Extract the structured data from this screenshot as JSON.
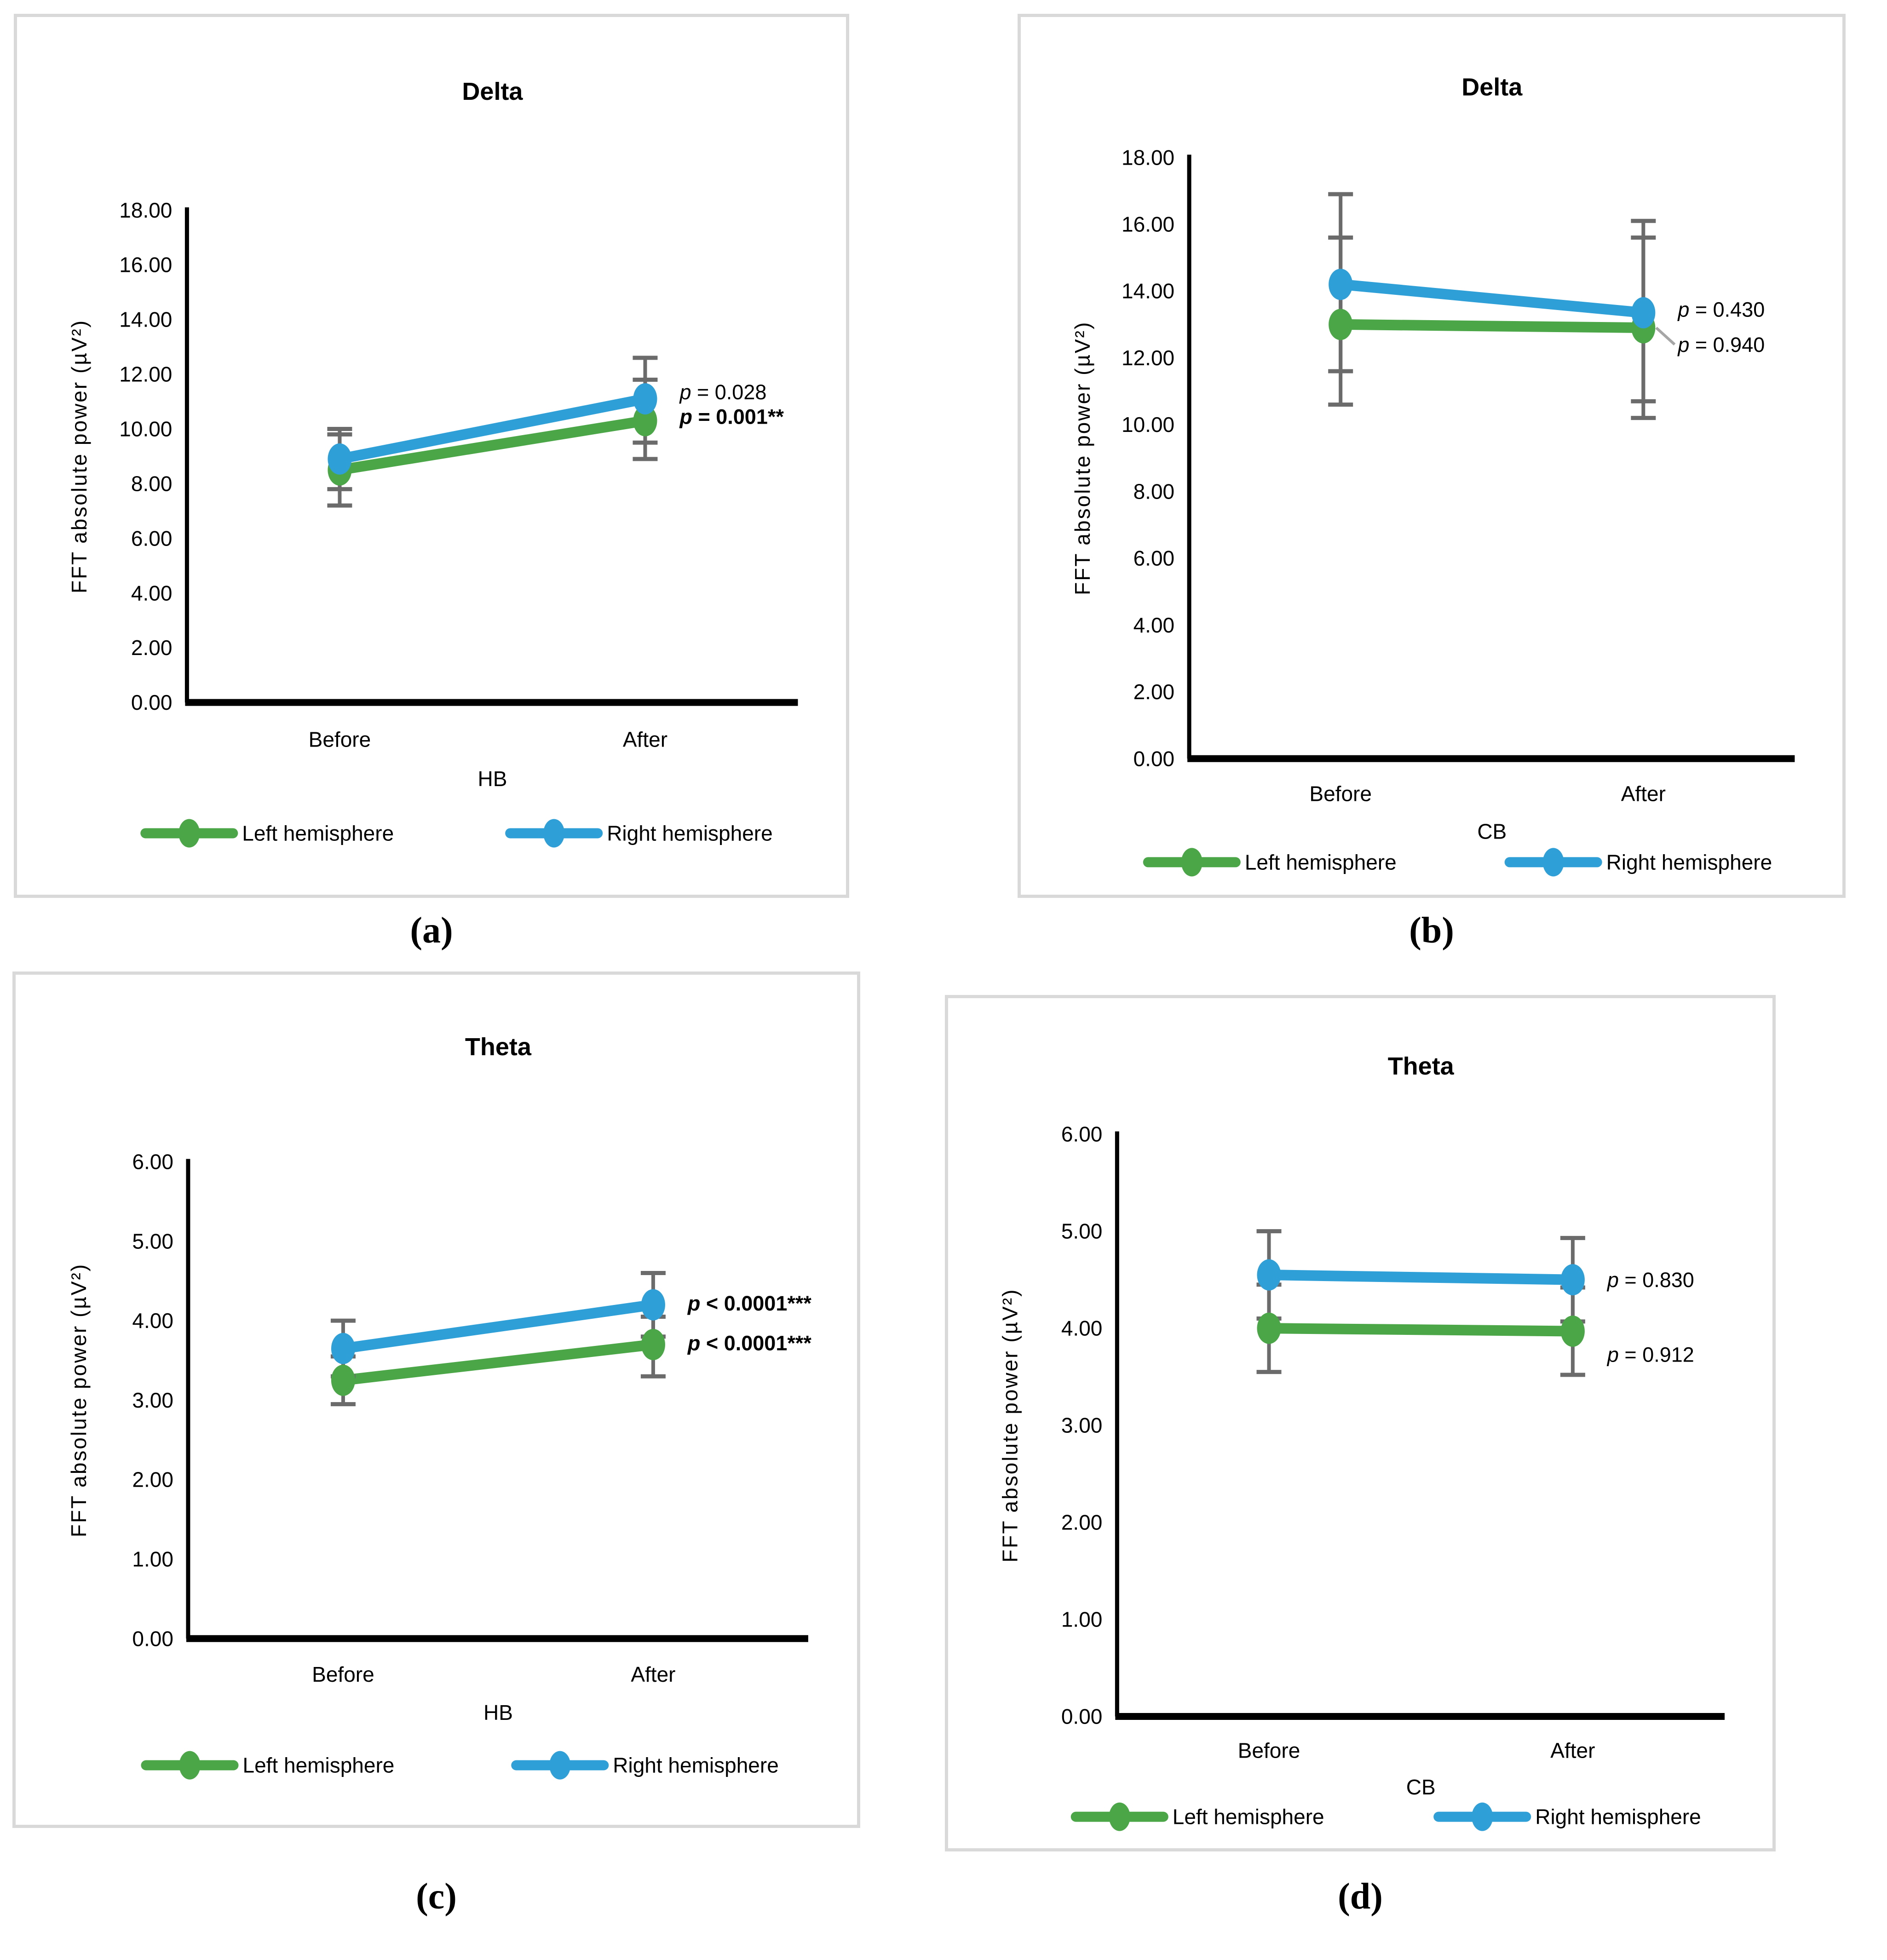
{
  "colors": {
    "left_hemisphere": "#4BA647",
    "right_hemisphere": "#2F9FD7",
    "error_bar": "#6B6B6B",
    "panel_border": "#D9D9D9",
    "axis": "#000000",
    "leader_line": "#A6A6A6",
    "text": "#000000"
  },
  "chart_data": [
    {
      "id": "a",
      "type": "line",
      "title": "Delta",
      "caption": "(a)",
      "xlabel": "HB",
      "ylabel": "FFT absolute power (µV²)",
      "categories": [
        "Before",
        "After"
      ],
      "ylim": [
        0,
        18
      ],
      "ytick_step": 2,
      "grid": false,
      "legend_position": "bottom",
      "series": [
        {
          "name": "Left hemisphere",
          "color": "#4BA647",
          "values": [
            8.5,
            10.3
          ],
          "err_low": [
            7.2,
            8.9
          ],
          "err_high": [
            9.8,
            11.8
          ]
        },
        {
          "name": "Right hemisphere",
          "color": "#2F9FD7",
          "values": [
            8.9,
            11.1
          ],
          "err_low": [
            7.8,
            9.5
          ],
          "err_high": [
            10.0,
            12.6
          ]
        }
      ],
      "annotations": [
        {
          "text": "p = 0.028",
          "bold": false,
          "y": 11.35,
          "leader": false,
          "leader_from_y": null
        },
        {
          "text": "p = 0.001**",
          "bold": true,
          "y": 10.45,
          "leader": false,
          "leader_from_y": null
        }
      ]
    },
    {
      "id": "b",
      "type": "line",
      "title": "Delta",
      "caption": "(b)",
      "xlabel": "CB",
      "ylabel": "FFT absolute power (µV²)",
      "categories": [
        "Before",
        "After"
      ],
      "ylim": [
        0,
        18
      ],
      "ytick_step": 2,
      "grid": false,
      "legend_position": "bottom",
      "series": [
        {
          "name": "Left hemisphere",
          "color": "#4BA647",
          "values": [
            13.0,
            12.9
          ],
          "err_low": [
            10.6,
            10.2
          ],
          "err_high": [
            15.6,
            15.6
          ]
        },
        {
          "name": "Right hemisphere",
          "color": "#2F9FD7",
          "values": [
            14.2,
            13.35
          ],
          "err_low": [
            11.6,
            10.7
          ],
          "err_high": [
            16.9,
            16.1
          ]
        }
      ],
      "annotations": [
        {
          "text": "p = 0.430",
          "bold": false,
          "y": 13.45,
          "leader": false,
          "leader_from_y": null
        },
        {
          "text": "p = 0.940",
          "bold": false,
          "y": 12.4,
          "leader": true,
          "leader_from_y": 12.9
        }
      ]
    },
    {
      "id": "c",
      "type": "line",
      "title": "Theta",
      "caption": "(c)",
      "xlabel": "HB",
      "ylabel": "FFT absolute power (µV²)",
      "categories": [
        "Before",
        "After"
      ],
      "ylim": [
        0,
        6
      ],
      "ytick_step": 1,
      "grid": false,
      "legend_position": "bottom",
      "series": [
        {
          "name": "Left hemisphere",
          "color": "#4BA647",
          "values": [
            3.25,
            3.7
          ],
          "err_low": [
            2.95,
            3.3
          ],
          "err_high": [
            3.55,
            4.05
          ]
        },
        {
          "name": "Right hemisphere",
          "color": "#2F9FD7",
          "values": [
            3.65,
            4.2
          ],
          "err_low": [
            3.3,
            3.8
          ],
          "err_high": [
            4.0,
            4.6
          ]
        }
      ],
      "annotations": [
        {
          "text": "p < 0.0001***",
          "bold": true,
          "y": 4.22,
          "leader": false,
          "leader_from_y": null
        },
        {
          "text": "p < 0.0001***",
          "bold": true,
          "y": 3.72,
          "leader": false,
          "leader_from_y": null
        }
      ]
    },
    {
      "id": "d",
      "type": "line",
      "title": "Theta",
      "caption": "(d)",
      "xlabel": "CB",
      "ylabel": "FFT absolute power (µV²)",
      "categories": [
        "Before",
        "After"
      ],
      "ylim": [
        0,
        6
      ],
      "ytick_step": 1,
      "grid": false,
      "legend_position": "bottom",
      "series": [
        {
          "name": "Left hemisphere",
          "color": "#4BA647",
          "values": [
            4.0,
            3.97
          ],
          "err_low": [
            3.55,
            3.52
          ],
          "err_high": [
            4.45,
            4.42
          ]
        },
        {
          "name": "Right hemisphere",
          "color": "#2F9FD7",
          "values": [
            4.55,
            4.5
          ],
          "err_low": [
            4.1,
            4.07
          ],
          "err_high": [
            5.0,
            4.93
          ]
        }
      ],
      "annotations": [
        {
          "text": "p = 0.830",
          "bold": false,
          "y": 4.5,
          "leader": false,
          "leader_from_y": null
        },
        {
          "text": "p = 0.912",
          "bold": false,
          "y": 3.73,
          "leader": false,
          "leader_from_y": null
        }
      ]
    }
  ]
}
